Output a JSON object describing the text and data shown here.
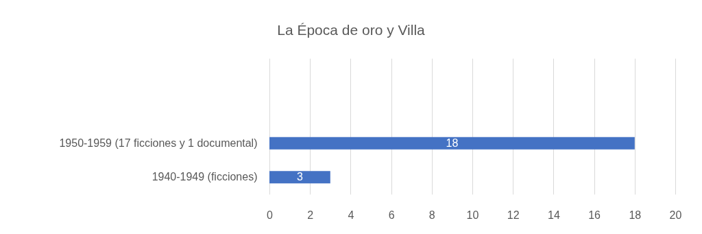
{
  "chart_data": {
    "type": "bar",
    "orientation": "horizontal",
    "title": "La Época de oro y Villa",
    "categories": [
      null,
      null,
      "1950-1959 (17 ficciones y 1 documental)",
      "1940-1949 (ficciones)"
    ],
    "values": [
      null,
      null,
      18,
      3
    ],
    "color": "#4472c4",
    "xlim": [
      0,
      20
    ],
    "xticks": [
      0,
      2,
      4,
      6,
      8,
      10,
      12,
      14,
      16,
      18,
      20
    ],
    "grid": "x",
    "data_labels": true
  }
}
